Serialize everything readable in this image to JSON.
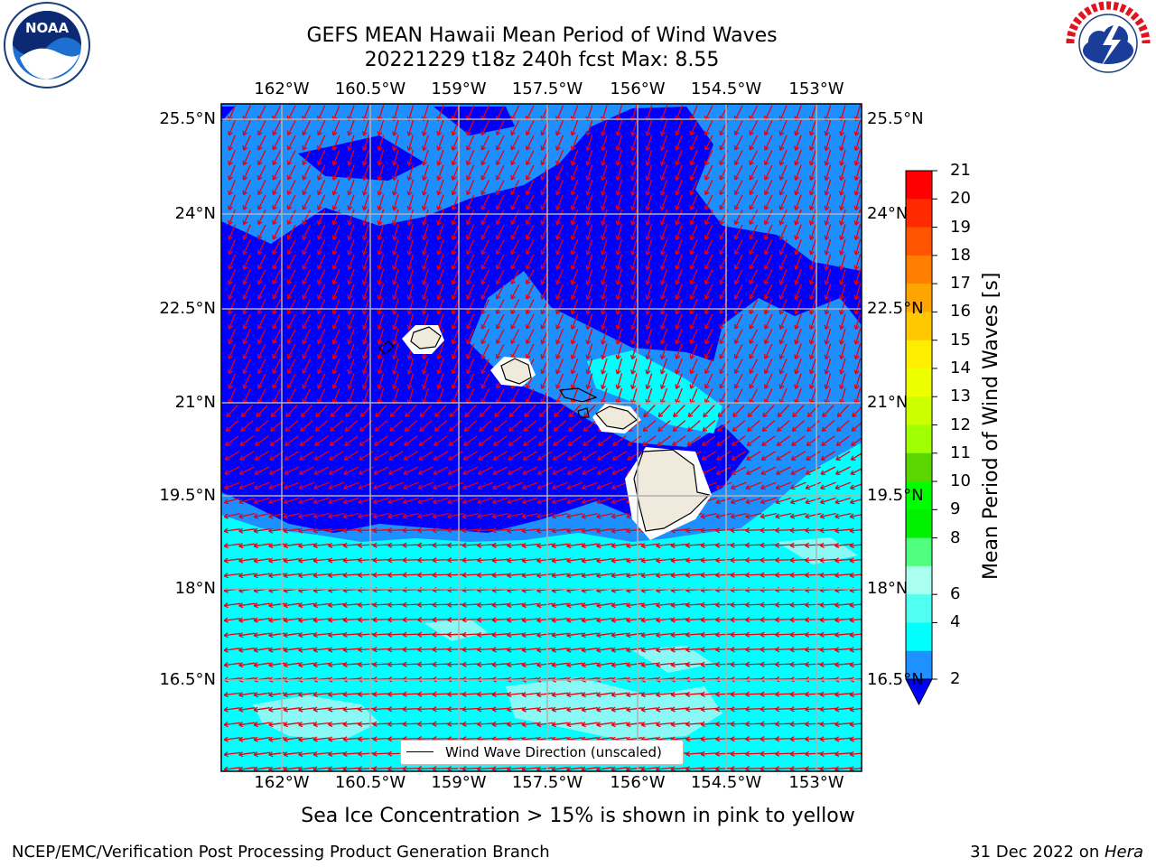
{
  "header": {
    "title_line1": "GEFS MEAN Hawaii Mean Period of Wind Waves",
    "title_line2": "20221229 t18z 240h fcst   Max: 8.55"
  },
  "logos": {
    "left": {
      "icon": "noaa-logo",
      "text": "NOAA"
    },
    "right": {
      "icon": "national-weather-service-logo",
      "text": "NATIONAL WEATHER SERVICE"
    }
  },
  "map": {
    "lon_labels": [
      "162°W",
      "160.5°W",
      "159°W",
      "157.5°W",
      "156°W",
      "154.5°W",
      "153°W"
    ],
    "lat_labels": [
      "25.5°N",
      "24°N",
      "22.5°N",
      "21°N",
      "19.5°N",
      "18°N",
      "16.5°N"
    ],
    "legend": "Wind Wave Direction (unscaled)"
  },
  "colorbar": {
    "label": "Mean Period of Wind Waves [s]",
    "ticks": [
      "21",
      "20",
      "19",
      "18",
      "17",
      "16",
      "15",
      "14",
      "13",
      "12",
      "11",
      "10",
      "9",
      "8",
      "6",
      "4",
      "2"
    ],
    "colors": [
      "#ff0000",
      "#ff2a00",
      "#ff5500",
      "#ff8000",
      "#ffa500",
      "#ffc800",
      "#ffee00",
      "#eeff00",
      "#ccff00",
      "#a0ff00",
      "#5cd600",
      "#00ff00",
      "#00f000",
      "#50ff80",
      "#aaffee",
      "#50fff0",
      "#00ffff",
      "#1e90ff",
      "#0000ff"
    ],
    "key_colors": {
      "deep": "#0000ff",
      "mid": "#1e8fff",
      "light": "#00ffff",
      "pale": "#8af8f4"
    }
  },
  "footer": {
    "note": "Sea Ice Concentration > 15% is shown in pink to yellow",
    "left": "NCEP/EMC/Verification Post Processing Product Generation Branch",
    "right_prefix": "31 Dec 2022 on ",
    "right_italic": "Hera"
  }
}
